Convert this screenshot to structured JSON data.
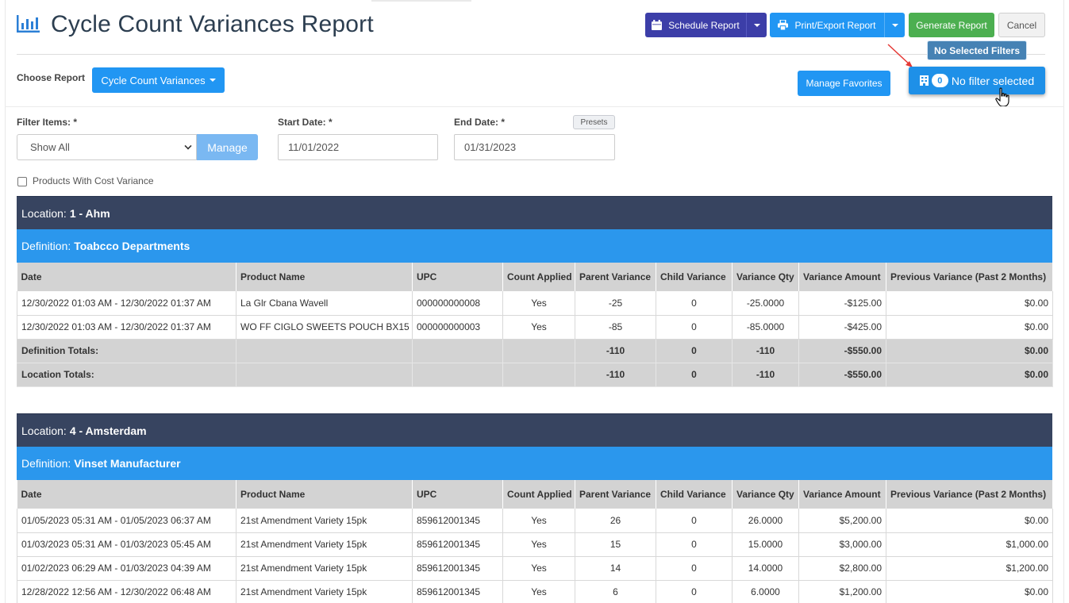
{
  "header": {
    "title": "Cycle Count Variances Report",
    "schedule_label": "Schedule Report",
    "print_label": "Print/Export Report",
    "generate_label": "Generate Report",
    "cancel_label": "Cancel",
    "tooltip": "No Selected Filters"
  },
  "controls": {
    "choose_label": "Choose Report",
    "report_selected": "Cycle Count Variances",
    "manage_favorites": "Manage Favorites",
    "filter_count": "0",
    "filter_label": "No filter selected"
  },
  "filters": {
    "items_label": "Filter Items: *",
    "items_value": "Show All",
    "manage_label": "Manage",
    "start_label": "Start Date: *",
    "start_value": "11/01/2022",
    "end_label": "End Date: *",
    "end_value": "01/31/2023",
    "presets_label": "Presets",
    "cost_variance_label": "Products With Cost Variance"
  },
  "columns": [
    "Date",
    "Product Name",
    "UPC",
    "Count Applied",
    "Parent Variance",
    "Child Variance",
    "Variance Qty",
    "Variance Amount",
    "Previous Variance (Past 2 Months)"
  ],
  "locations": [
    {
      "location_prefix": "Location:",
      "location_name": "1 - Ahm",
      "definition_prefix": "Definition:",
      "definition_name": "Toabcco Departments",
      "rows": [
        [
          "12/30/2022 01:03 AM - 12/30/2022 01:37 AM",
          "La Glr Cbana Wavell",
          "000000000008",
          "Yes",
          "-25",
          "0",
          "-25.0000",
          "-$125.00",
          "$0.00"
        ],
        [
          "12/30/2022 01:03 AM - 12/30/2022 01:37 AM",
          "WO FF CIGLO SWEETS POUCH BX15",
          "000000000003",
          "Yes",
          "-85",
          "0",
          "-85.0000",
          "-$425.00",
          "$0.00"
        ]
      ],
      "totals": [
        [
          "Definition Totals:",
          "",
          "",
          "",
          "-110",
          "0",
          "-110",
          "-$550.00",
          "$0.00"
        ],
        [
          "Location Totals:",
          "",
          "",
          "",
          "-110",
          "0",
          "-110",
          "-$550.00",
          "$0.00"
        ]
      ]
    },
    {
      "location_prefix": "Location:",
      "location_name": "4 - Amsterdam",
      "definition_prefix": "Definition:",
      "definition_name": "Vinset Manufacturer",
      "rows": [
        [
          "01/05/2023 05:31 AM - 01/05/2023 06:37 AM",
          "21st Amendment Variety 15pk",
          "859612001345",
          "Yes",
          "26",
          "0",
          "26.0000",
          "$5,200.00",
          "$0.00"
        ],
        [
          "01/03/2023 05:31 AM - 01/03/2023 05:45 AM",
          "21st Amendment Variety 15pk",
          "859612001345",
          "Yes",
          "15",
          "0",
          "15.0000",
          "$3,000.00",
          "$1,000.00"
        ],
        [
          "01/02/2023 06:29 AM - 01/03/2023 04:39 AM",
          "21st Amendment Variety 15pk",
          "859612001345",
          "Yes",
          "14",
          "0",
          "14.0000",
          "$2,800.00",
          "$1,200.00"
        ],
        [
          "12/28/2022 12:56 AM - 12/30/2022 06:48 AM",
          "21st Amendment Variety 15pk",
          "859612001345",
          "Yes",
          "6",
          "0",
          "6.0000",
          "$1,200.00",
          "$0.00"
        ]
      ],
      "totals": []
    }
  ]
}
